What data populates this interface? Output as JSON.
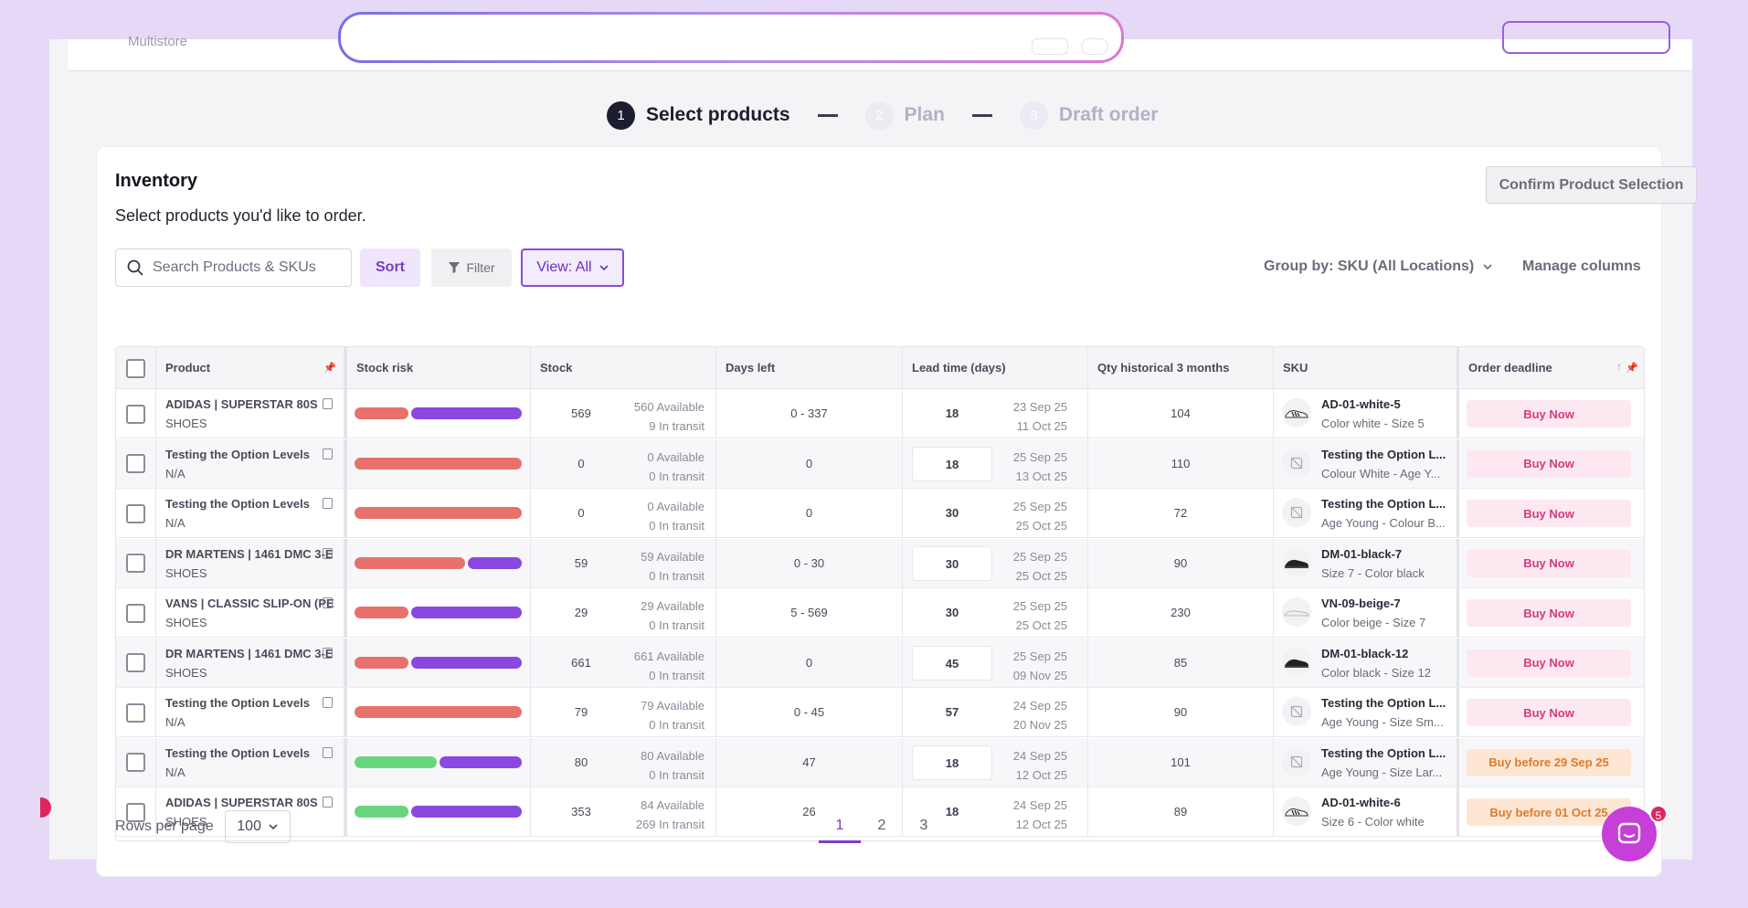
{
  "header": {
    "brand": "Multistore"
  },
  "stepper": [
    {
      "num": "1",
      "label": "Select products"
    },
    {
      "num": "2",
      "label": "Plan"
    },
    {
      "num": "3",
      "label": "Draft order"
    }
  ],
  "card": {
    "title": "Inventory",
    "subtitle": "Select products you'd like to order.",
    "confirm_label": "Confirm Product Selection"
  },
  "toolbar": {
    "search_placeholder": "Search Products & SKUs",
    "sort_label": "Sort",
    "filter_label": "Filter",
    "view_label": "View: All",
    "group_by_label": "Group by: SKU (All Locations)",
    "manage_columns_label": "Manage columns"
  },
  "colors": {
    "red": "#e8716c",
    "purple": "#8b48e0",
    "green": "#6ad57f",
    "accent": "#7a3cc8"
  },
  "table": {
    "columns": [
      "Product",
      "Stock risk",
      "Stock",
      "Days left",
      "Lead time (days)",
      "Qty historical 3 months",
      "SKU",
      "Order deadline"
    ],
    "rows": [
      {
        "product": "ADIDAS | SUPERSTAR 80S",
        "category": "SHOES",
        "risk": [
          {
            "c": "red",
            "f": 0.33
          },
          {
            "c": "purple",
            "f": 0.67
          }
        ],
        "stock": "569",
        "available": "560 Available",
        "transit": "9 In transit",
        "days": "0 - 337",
        "lead": "18",
        "date1": "23 Sep 25",
        "date2": "11 Oct 25",
        "qty": "104",
        "sku": "AD-01-white-5",
        "variant": "Color white - Size 5",
        "img": "shoe-white",
        "deadline": "Buy Now",
        "deadline_type": "now"
      },
      {
        "product": "Testing the Option Levels",
        "category": "N/A",
        "risk": [
          {
            "c": "red",
            "f": 1
          }
        ],
        "stock": "0",
        "available": "0 Available",
        "transit": "0 In transit",
        "days": "0",
        "lead": "18",
        "date1": "25 Sep 25",
        "date2": "13 Oct 25",
        "qty": "110",
        "sku": "Testing the Option L...",
        "variant": "Colour White - Age Y...",
        "img": "no-image",
        "deadline": "Buy Now",
        "deadline_type": "now"
      },
      {
        "product": "Testing the Option Levels",
        "category": "N/A",
        "risk": [
          {
            "c": "red",
            "f": 1
          }
        ],
        "stock": "0",
        "available": "0 Available",
        "transit": "0 In transit",
        "days": "0",
        "lead": "30",
        "date1": "25 Sep 25",
        "date2": "25 Oct 25",
        "qty": "72",
        "sku": "Testing the Option L...",
        "variant": "Age Young - Colour B...",
        "img": "no-image",
        "deadline": "Buy Now",
        "deadline_type": "now"
      },
      {
        "product": "DR MARTENS | 1461 DMC 3-E",
        "category": "SHOES",
        "risk": [
          {
            "c": "red",
            "f": 0.67
          },
          {
            "c": "purple",
            "f": 0.33
          }
        ],
        "stock": "59",
        "available": "59 Available",
        "transit": "0 In transit",
        "days": "0 - 30",
        "lead": "30",
        "date1": "25 Sep 25",
        "date2": "25 Oct 25",
        "qty": "90",
        "sku": "DM-01-black-7",
        "variant": "Size 7 - Color black",
        "img": "shoe-black",
        "deadline": "Buy Now",
        "deadline_type": "now"
      },
      {
        "product": "VANS | CLASSIC SLIP-ON (PE",
        "category": "SHOES",
        "risk": [
          {
            "c": "red",
            "f": 0.33
          },
          {
            "c": "purple",
            "f": 0.67
          }
        ],
        "stock": "29",
        "available": "29 Available",
        "transit": "0 In transit",
        "days": "5 - 569",
        "lead": "30",
        "date1": "25 Sep 25",
        "date2": "25 Oct 25",
        "qty": "230",
        "sku": "VN-09-beige-7",
        "variant": "Color beige - Size 7",
        "img": "shoe-beige",
        "deadline": "Buy Now",
        "deadline_type": "now"
      },
      {
        "product": "DR MARTENS | 1461 DMC 3-E",
        "category": "SHOES",
        "risk": [
          {
            "c": "red",
            "f": 0.33
          },
          {
            "c": "purple",
            "f": 0.67
          }
        ],
        "stock": "661",
        "available": "661 Available",
        "transit": "0 In transit",
        "days": "0",
        "lead": "45",
        "date1": "25 Sep 25",
        "date2": "09 Nov 25",
        "qty": "85",
        "sku": "DM-01-black-12",
        "variant": "Color black - Size 12",
        "img": "shoe-black",
        "deadline": "Buy Now",
        "deadline_type": "now"
      },
      {
        "product": "Testing the Option Levels",
        "category": "N/A",
        "risk": [
          {
            "c": "red",
            "f": 1
          }
        ],
        "stock": "79",
        "available": "79 Available",
        "transit": "0 In transit",
        "days": "0 - 45",
        "lead": "57",
        "date1": "24 Sep 25",
        "date2": "20 Nov 25",
        "qty": "90",
        "sku": "Testing the Option L...",
        "variant": "Age Young - Size Sm...",
        "img": "no-image",
        "deadline": "Buy Now",
        "deadline_type": "now"
      },
      {
        "product": "Testing the Option Levels",
        "category": "N/A",
        "risk": [
          {
            "c": "green",
            "f": 0.5
          },
          {
            "c": "purple",
            "f": 0.5
          }
        ],
        "stock": "80",
        "available": "80 Available",
        "transit": "0 In transit",
        "days": "47",
        "lead": "18",
        "date1": "24 Sep 25",
        "date2": "12 Oct 25",
        "qty": "101",
        "sku": "Testing the Option L...",
        "variant": "Age Young - Size Lar...",
        "img": "no-image",
        "deadline": "Buy before 29 Sep 25",
        "deadline_type": "before"
      },
      {
        "product": "ADIDAS | SUPERSTAR 80S",
        "category": "SHOES",
        "risk": [
          {
            "c": "green",
            "f": 0.33
          },
          {
            "c": "purple",
            "f": 0.67
          }
        ],
        "stock": "353",
        "available": "84 Available",
        "transit": "269 In transit",
        "days": "26",
        "lead": "18",
        "date1": "24 Sep 25",
        "date2": "12 Oct 25",
        "qty": "89",
        "sku": "AD-01-white-6",
        "variant": "Size 6 - Color white",
        "img": "shoe-white",
        "deadline": "Buy before 01 Oct 25",
        "deadline_type": "before"
      }
    ]
  },
  "footer": {
    "rows_per_page_label": "Rows per page",
    "rows_per_page_value": "100",
    "pages": [
      "1",
      "2",
      "3"
    ]
  },
  "chat": {
    "badge": "5"
  }
}
